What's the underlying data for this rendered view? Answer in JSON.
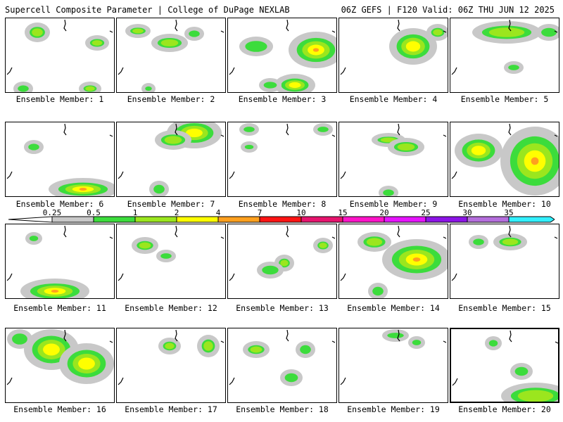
{
  "header": {
    "title_left": "Supercell Composite Parameter | College of DuPage NEXLAB",
    "title_right": "06Z GEFS | F120 Valid: 06Z THU JUN 12 2025"
  },
  "members": [
    {
      "label": "Ensemble Member: 1"
    },
    {
      "label": "Ensemble Member: 2"
    },
    {
      "label": "Ensemble Member: 3"
    },
    {
      "label": "Ensemble Member: 4"
    },
    {
      "label": "Ensemble Member: 5"
    },
    {
      "label": "Ensemble Member: 6"
    },
    {
      "label": "Ensemble Member: 7"
    },
    {
      "label": "Ensemble Member: 8"
    },
    {
      "label": "Ensemble Member: 9"
    },
    {
      "label": "Ensemble Member: 10"
    },
    {
      "label": "Ensemble Member: 11"
    },
    {
      "label": "Ensemble Member: 12"
    },
    {
      "label": "Ensemble Member: 13"
    },
    {
      "label": "Ensemble Member: 14"
    },
    {
      "label": "Ensemble Member: 15"
    },
    {
      "label": "Ensemble Member: 16"
    },
    {
      "label": "Ensemble Member: 17"
    },
    {
      "label": "Ensemble Member: 18"
    },
    {
      "label": "Ensemble Member: 19"
    },
    {
      "label": "Ensemble Member: 20",
      "selected": true
    }
  ],
  "colorbar": {
    "labels": [
      "0.25",
      "0.5",
      "1",
      "2",
      "4",
      "7",
      "10",
      "15",
      "20",
      "25",
      "30",
      "35"
    ],
    "colors": [
      "#c8c8c8",
      "#3cdc3c",
      "#9be61e",
      "#ffff00",
      "#ffa01e",
      "#ff1414",
      "#e6146e",
      "#ff14c8",
      "#e614ff",
      "#8c14e6",
      "#b46edc",
      "#32f0ff"
    ]
  },
  "field_colors": {
    "gray": "#c8c8c8",
    "green": "#3cdc3c",
    "lime": "#9be61e",
    "yellow": "#ffff00",
    "orange": "#ffa01e",
    "red": "#ff1414",
    "magenta": "#e6146e"
  }
}
